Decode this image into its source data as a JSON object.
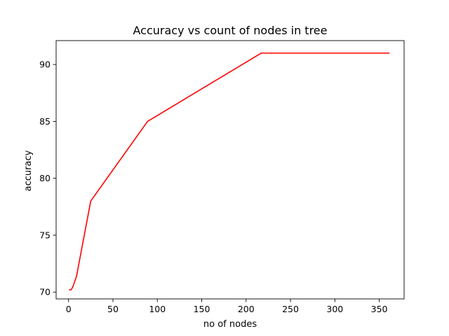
{
  "chart_data": {
    "type": "line",
    "title": "Accuracy vs count of nodes in tree",
    "xlabel": "no of nodes",
    "ylabel": "accuracy",
    "xlim": [
      -14,
      378
    ],
    "ylim": [
      69.4,
      92.1
    ],
    "xticks": [
      0,
      50,
      100,
      150,
      200,
      250,
      300,
      350
    ],
    "yticks": [
      70,
      75,
      80,
      85,
      90
    ],
    "grid": false,
    "series": [
      {
        "color": "#ff0000",
        "x": [
          1,
          3,
          5,
          9,
          25,
          89,
          217,
          361
        ],
        "y": [
          70.2,
          70.2,
          70.5,
          71.4,
          78.0,
          85.0,
          91.0,
          91.0
        ]
      }
    ]
  }
}
